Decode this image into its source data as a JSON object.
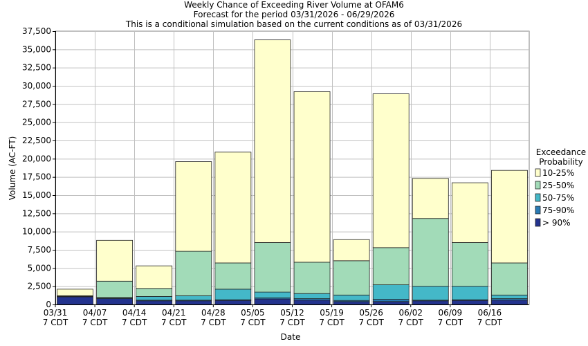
{
  "chart_data": {
    "type": "bar",
    "title": "Weekly Chance of Exceeding River Volume at OFAM6",
    "subtitle": "Forecast for the period 03/31/2026 - 06/29/2026",
    "subtitle2": "This is a conditional simulation based on the current conditions as of 03/31/2026",
    "xlabel": "Date",
    "ylabel": "Volume (AC-FT)",
    "ylim": [
      0,
      37500
    ],
    "yticks": [
      "0",
      "2,500",
      "5,000",
      "7,500",
      "10,000",
      "12,500",
      "15,000",
      "17,500",
      "20,000",
      "22,500",
      "25,000",
      "27,500",
      "30,000",
      "32,500",
      "35,000",
      "37,500"
    ],
    "categories": [
      "03/31",
      "04/07",
      "04/14",
      "04/21",
      "04/28",
      "05/05",
      "05/12",
      "05/19",
      "05/26",
      "06/02",
      "06/09",
      "06/16"
    ],
    "category_sub": [
      "7 CDT",
      "7 CDT",
      "7 CDT",
      "7 CDT",
      "7 CDT",
      "7 CDT",
      "7 CDT",
      "7 CDT",
      "7 CDT",
      "7 CDT",
      "7 CDT",
      "7 CDT"
    ],
    "grid": true,
    "legend_title": [
      "Exceedance",
      "Probability"
    ],
    "legend_placement": "right",
    "series": [
      {
        "name": "> 90%",
        "color": "#23338e",
        "values": [
          1050,
          800,
          500,
          500,
          550,
          750,
          600,
          400,
          400,
          500,
          550,
          600
        ]
      },
      {
        "name": "75-90%",
        "color": "#2a7bb5",
        "values": [
          1100,
          900,
          600,
          600,
          650,
          900,
          800,
          550,
          700,
          600,
          650,
          800
        ]
      },
      {
        "name": "50-75%",
        "color": "#44b8c8",
        "values": [
          1150,
          950,
          1100,
          1200,
          2100,
          1700,
          1500,
          1300,
          2700,
          2500,
          2500,
          1300
        ]
      },
      {
        "name": "25-50%",
        "color": "#a2dbb8",
        "values": [
          1200,
          3200,
          2200,
          7300,
          5700,
          8500,
          5800,
          6000,
          7800,
          11800,
          8500,
          5700
        ]
      },
      {
        "name": "10-25%",
        "color": "#ffffcc",
        "values": [
          2100,
          8800,
          5300,
          19600,
          20900,
          36300,
          29200,
          8900,
          28900,
          17300,
          16700,
          18400
        ]
      }
    ]
  }
}
